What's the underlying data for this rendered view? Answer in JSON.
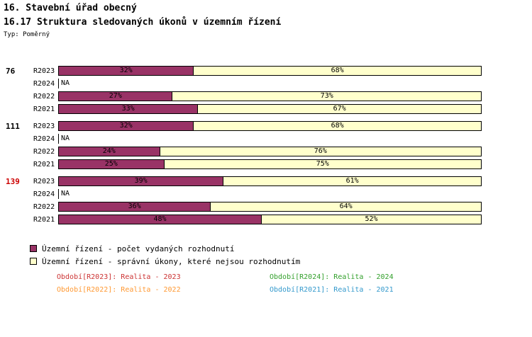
{
  "header": {
    "title1": "16. Stavební úřad obecný",
    "title2": "16.17 Struktura sledovaných úkonů v územním řízení",
    "type_label": "Typ: Poměrný"
  },
  "chart_data": {
    "type": "bar",
    "orientation": "horizontal",
    "stacked": true,
    "unit": "%",
    "xlim": [
      0,
      100
    ],
    "na_label": "NA",
    "series_names": [
      "Územní řízení - počet vydaných rozhodnutí",
      "Územní řízení - správní úkony, které nejsou rozhodnutím"
    ],
    "colors": {
      "series1": "#993366",
      "series2": "#FFFFCC",
      "border": "#000000"
    },
    "groups": [
      {
        "total": "76",
        "total_color": "#000000",
        "rows": [
          {
            "label": "R2023",
            "values": [
              32,
              68
            ]
          },
          {
            "label": "R2024",
            "na": true
          },
          {
            "label": "R2022",
            "values": [
              27,
              73
            ]
          },
          {
            "label": "R2021",
            "values": [
              33,
              67
            ]
          }
        ]
      },
      {
        "total": "111",
        "total_color": "#000000",
        "rows": [
          {
            "label": "R2023",
            "values": [
              32,
              68
            ]
          },
          {
            "label": "R2024",
            "na": true
          },
          {
            "label": "R2022",
            "values": [
              24,
              76
            ]
          },
          {
            "label": "R2021",
            "values": [
              25,
              75
            ]
          }
        ]
      },
      {
        "total": "139",
        "total_color": "#CC0000",
        "rows": [
          {
            "label": "R2023",
            "values": [
              39,
              61
            ]
          },
          {
            "label": "R2024",
            "na": true
          },
          {
            "label": "R2022",
            "values": [
              36,
              64
            ]
          },
          {
            "label": "R2021",
            "values": [
              48,
              52
            ]
          }
        ]
      }
    ]
  },
  "legend": {
    "items": [
      {
        "label": "Územní řízení - počet vydaných rozhodnutí",
        "color": "#993366"
      },
      {
        "label": "Územní řízení - správní úkony, které nejsou rozhodnutím",
        "color": "#FFFFCC"
      }
    ]
  },
  "footer": {
    "items": [
      {
        "label": "Období[R2023]: Realita - 2023",
        "color": "#CC3333",
        "col": 0,
        "row": 0
      },
      {
        "label": "Období[R2024]: Realita - 2024",
        "color": "#33A02C",
        "col": 1,
        "row": 0
      },
      {
        "label": "Období[R2022]: Realita - 2022",
        "color": "#FF9933",
        "col": 0,
        "row": 1
      },
      {
        "label": "Období[R2021]: Realita - 2021",
        "color": "#3399CC",
        "col": 1,
        "row": 1
      }
    ]
  }
}
